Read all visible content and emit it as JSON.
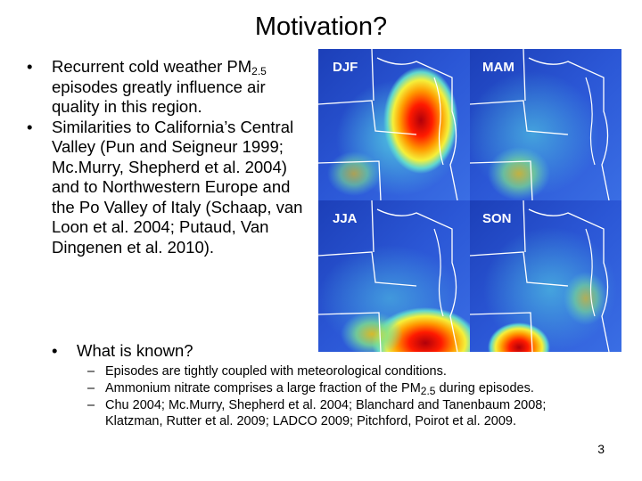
{
  "slide": {
    "title": "Motivation?",
    "bullets": [
      {
        "pre": "Recurrent cold weather PM",
        "sub": "2.5",
        "post": " episodes greatly influence air quality in this region."
      },
      {
        "text": "Similarities to California’s Central Valley (Pun and Seigneur 1999; Mc.Murry, Shepherd et al. 2004) and to Northwestern Europe and the Po Valley of Italy (Schaap, van Loon et al. 2004; Putaud, Van Dingenen et al. 2010)."
      }
    ],
    "maps": {
      "panels": [
        {
          "label": "DJF"
        },
        {
          "label": "MAM"
        },
        {
          "label": "JJA"
        },
        {
          "label": "SON"
        }
      ]
    },
    "known_heading": "What is known?",
    "known_items": [
      {
        "text": "Episodes are tightly coupled with meteorological conditions."
      },
      {
        "pre": "Ammonium nitrate comprises a large fraction of the PM",
        "sub": "2.5",
        "post": " during episodes."
      },
      {
        "text": "Chu 2004; Mc.Murry, Shepherd et al. 2004; Blanchard and Tanenbaum 2008; Klatzman, Rutter et al. 2009; LADCO 2009; Pitchford, Poirot et al. 2009."
      }
    ],
    "page_number": "3"
  }
}
